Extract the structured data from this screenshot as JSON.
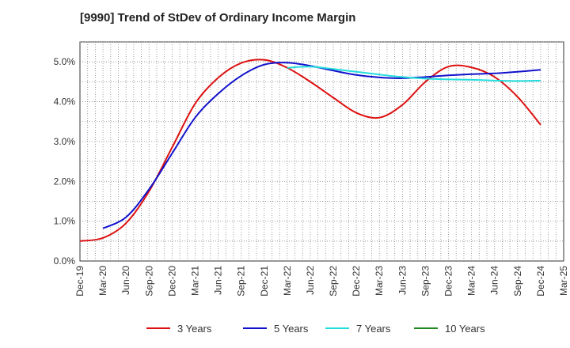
{
  "chart_data": {
    "type": "line",
    "title": "[9990]  Trend of StDev of Ordinary Income Margin",
    "xlabel": "",
    "ylabel": "",
    "x_ticks": [
      "Dec-19",
      "Mar-20",
      "Jun-20",
      "Sep-20",
      "Dec-20",
      "Mar-21",
      "Jun-21",
      "Sep-21",
      "Dec-21",
      "Mar-22",
      "Jun-22",
      "Sep-22",
      "Dec-22",
      "Mar-23",
      "Jun-23",
      "Sep-23",
      "Dec-23",
      "Mar-24",
      "Jun-24",
      "Sep-24",
      "Dec-24",
      "Mar-25"
    ],
    "y_ticks": [
      "0.0%",
      "1.0%",
      "2.0%",
      "3.0%",
      "4.0%",
      "5.0%"
    ],
    "ylim": [
      0,
      5.5
    ],
    "grid": true,
    "legend_position": "bottom",
    "series": [
      {
        "name": "3 Years",
        "color": "#dd1111",
        "x": [
          "Dec-19",
          "Mar-20",
          "Jun-20",
          "Sep-20",
          "Dec-20",
          "Mar-21",
          "Jun-21",
          "Sep-21",
          "Dec-21",
          "Mar-22",
          "Jun-22",
          "Sep-22",
          "Dec-22",
          "Mar-23",
          "Jun-23",
          "Sep-23",
          "Dec-23",
          "Mar-24",
          "Jun-24",
          "Sep-24",
          "Dec-24"
        ],
        "values": [
          0.5,
          0.58,
          0.95,
          1.75,
          2.85,
          3.95,
          4.6,
          4.97,
          5.05,
          4.85,
          4.5,
          4.1,
          3.72,
          3.6,
          3.92,
          4.5,
          4.88,
          4.86,
          4.62,
          4.12,
          3.42
        ]
      },
      {
        "name": "5 Years",
        "color": "#1111cc",
        "x": [
          "Mar-20",
          "Jun-20",
          "Sep-20",
          "Dec-20",
          "Mar-21",
          "Jun-21",
          "Sep-21",
          "Dec-21",
          "Mar-22",
          "Jun-22",
          "Sep-22",
          "Dec-22",
          "Mar-23",
          "Jun-23",
          "Sep-23",
          "Dec-23",
          "Mar-24",
          "Jun-24",
          "Sep-24",
          "Dec-24"
        ],
        "values": [
          0.82,
          1.1,
          1.8,
          2.7,
          3.6,
          4.2,
          4.65,
          4.93,
          4.98,
          4.9,
          4.78,
          4.67,
          4.61,
          4.59,
          4.62,
          4.66,
          4.69,
          4.71,
          4.75,
          4.8
        ]
      },
      {
        "name": "7 Years",
        "color": "#22dddd",
        "x": [
          "Mar-22",
          "Jun-22",
          "Sep-22",
          "Dec-22",
          "Mar-23",
          "Jun-23",
          "Sep-23",
          "Dec-23",
          "Mar-24",
          "Jun-24",
          "Sep-24",
          "Dec-24"
        ],
        "values": [
          4.85,
          4.88,
          4.82,
          4.75,
          4.68,
          4.62,
          4.58,
          4.56,
          4.55,
          4.53,
          4.52,
          4.53
        ]
      },
      {
        "name": "10 Years",
        "color": "#228822",
        "x": [],
        "values": []
      }
    ]
  }
}
